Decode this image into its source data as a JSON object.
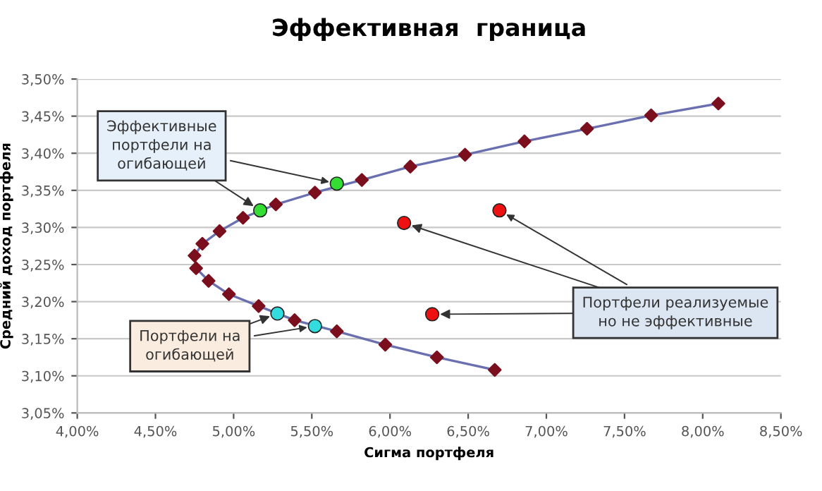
{
  "chart_data": {
    "type": "line",
    "title": "Эффективная  граница",
    "xlabel": "Сигма портфеля",
    "ylabel": "Средний доход портфеля",
    "xlim": [
      4.0,
      8.5
    ],
    "xticks": [
      {
        "value": 4.0,
        "label": "4,00%"
      },
      {
        "value": 4.5,
        "label": "4,50%"
      },
      {
        "value": 5.0,
        "label": "5,00%"
      },
      {
        "value": 5.5,
        "label": "5,50%"
      },
      {
        "value": 6.0,
        "label": "6,00%"
      },
      {
        "value": 6.5,
        "label": "6,50%"
      },
      {
        "value": 7.0,
        "label": "7,00%"
      },
      {
        "value": 7.5,
        "label": "7,50%"
      },
      {
        "value": 8.0,
        "label": "8,00%"
      },
      {
        "value": 8.5,
        "label": "8,50%"
      }
    ],
    "ylim": [
      3.05,
      3.5
    ],
    "yticks": [
      {
        "value": 3.05,
        "label": "3,05%"
      },
      {
        "value": 3.1,
        "label": "3,10%"
      },
      {
        "value": 3.15,
        "label": "3,15%"
      },
      {
        "value": 3.2,
        "label": "3,20%"
      },
      {
        "value": 3.25,
        "label": "3,25%"
      },
      {
        "value": 3.3,
        "label": "3,30%"
      },
      {
        "value": 3.35,
        "label": "3,35%"
      },
      {
        "value": 3.4,
        "label": "3,40%"
      },
      {
        "value": 3.45,
        "label": "3,45%"
      },
      {
        "value": 3.5,
        "label": "3,50%"
      }
    ],
    "grid": "y",
    "legend": false,
    "series": [
      {
        "marker": "diamond",
        "color": "#6a6fb0",
        "colors": [
          "#7b0f1e",
          "#7b0f1e",
          "#7b0f1e",
          "#7b0f1e",
          "#7b0f1e",
          "#7b0f1e",
          "#7b0f1e",
          "#7b0f1e",
          "#7b0f1e",
          "#7b0f1e",
          "#7b0f1e",
          "#7b0f1e",
          "#7b0f1e",
          "#7b0f1e",
          "#7b0f1e",
          "#7b0f1e",
          "#7b0f1e",
          "#7b0f1e",
          "#7b0f1e",
          "#7b0f1e",
          "#7b0f1e",
          "#7b0f1e"
        ],
        "x": [
          6.67,
          6.3,
          5.97,
          5.66,
          5.39,
          5.16,
          4.97,
          4.84,
          4.76,
          4.75,
          4.8,
          4.91,
          5.06,
          5.27,
          5.52,
          5.82,
          6.13,
          6.48,
          6.86,
          7.26,
          7.67,
          8.1
        ],
        "values": [
          3.108,
          3.125,
          3.142,
          3.16,
          3.175,
          3.194,
          3.21,
          3.228,
          3.245,
          3.262,
          3.278,
          3.295,
          3.313,
          3.331,
          3.347,
          3.364,
          3.382,
          3.398,
          3.416,
          3.433,
          3.451,
          3.467
        ]
      },
      {
        "type": "scatter",
        "marker": "circle",
        "color": "#33dd33",
        "x": [
          5.17,
          5.66
        ],
        "values": [
          3.323,
          3.359
        ]
      },
      {
        "type": "scatter",
        "marker": "circle",
        "color": "#33dddd",
        "x": [
          5.28,
          5.52
        ],
        "values": [
          3.184,
          3.167
        ]
      },
      {
        "type": "scatter",
        "marker": "circle",
        "color": "#ee1111",
        "x": [
          6.09,
          6.7,
          6.27
        ],
        "values": [
          3.306,
          3.323,
          3.183
        ]
      }
    ],
    "annotations": [
      {
        "text": "Эффективные\nпортфели на\nогибающей",
        "x": 5.66,
        "y": 3.359
      },
      {
        "text": "Портфели на\nогибающей",
        "x": 5.52,
        "y": 3.167
      },
      {
        "text": "Портфели реализуемые\nно не эффективные",
        "x": 6.7,
        "y": 3.323
      }
    ]
  }
}
